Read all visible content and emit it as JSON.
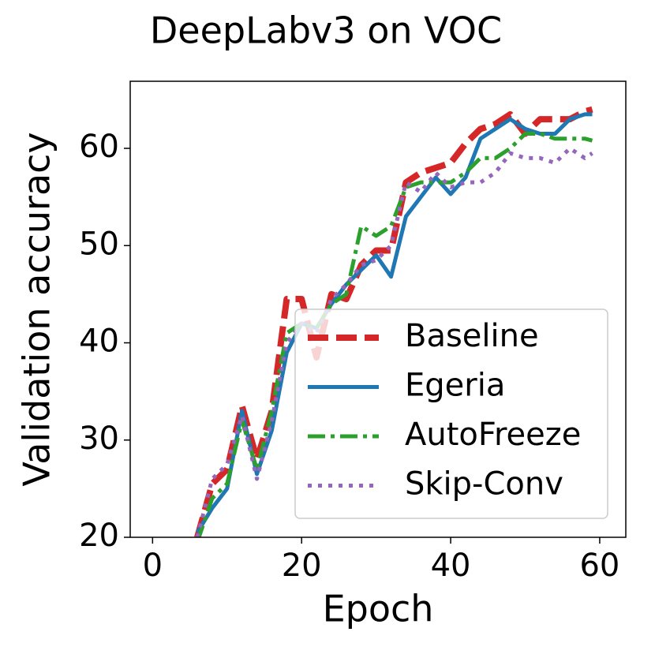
{
  "chart_data": {
    "type": "line",
    "title": "DeepLabv3 on VOC",
    "xlabel": "Epoch",
    "ylabel": "Validation accuracy",
    "x": [
      6,
      8,
      10,
      12,
      14,
      16,
      18,
      20,
      22,
      24,
      26,
      28,
      30,
      32,
      34,
      36,
      38,
      40,
      42,
      44,
      46,
      48,
      50,
      52,
      54,
      56,
      58,
      59
    ],
    "series": [
      {
        "name": "Baseline",
        "color": "#d62728",
        "linestyle": "dashed",
        "values": [
          20,
          25.5,
          27,
          33.5,
          28,
          33,
          44.5,
          44.5,
          38.5,
          45,
          44.5,
          48,
          49.5,
          49.5,
          56.5,
          57.5,
          58,
          58.5,
          60.5,
          62,
          62.5,
          63.5,
          61.5,
          63,
          63,
          63,
          63.8,
          64
        ]
      },
      {
        "name": "Egeria",
        "color": "#1f77b4",
        "linestyle": "solid",
        "values": [
          20.5,
          23,
          25,
          33,
          26.5,
          31,
          39,
          42,
          41.5,
          44,
          46,
          47.5,
          49,
          46.8,
          53,
          55,
          57,
          55.3,
          57,
          61,
          62,
          63,
          62,
          61.5,
          61.5,
          63,
          63.5,
          63.5
        ]
      },
      {
        "name": "AutoFreeze",
        "color": "#2ca02c",
        "linestyle": "dashdot",
        "values": [
          19.5,
          24,
          25.5,
          32,
          27,
          33,
          41,
          42,
          41.5,
          44,
          45,
          52,
          51,
          52,
          56,
          56.5,
          56.5,
          56.5,
          57.5,
          59,
          59,
          60,
          61.5,
          61.5,
          61,
          61,
          61,
          60.8
        ]
      },
      {
        "name": "Skip-Conv",
        "color": "#9467bd",
        "linestyle": "dotted",
        "values": [
          20,
          26,
          27.5,
          32.5,
          26,
          32,
          40,
          42,
          41,
          44.5,
          46,
          48,
          48.5,
          50,
          56.5,
          55.5,
          57.5,
          56,
          56.5,
          56.5,
          57.5,
          59.5,
          59,
          59,
          58.5,
          60,
          59,
          59.5
        ]
      }
    ],
    "xlim": [
      -3,
      63.5
    ],
    "xticks": [
      0,
      20,
      40,
      60
    ],
    "ylim": [
      20,
      66.9
    ],
    "yticks": [
      20,
      30,
      40,
      50,
      60
    ],
    "legend": "lower right"
  }
}
